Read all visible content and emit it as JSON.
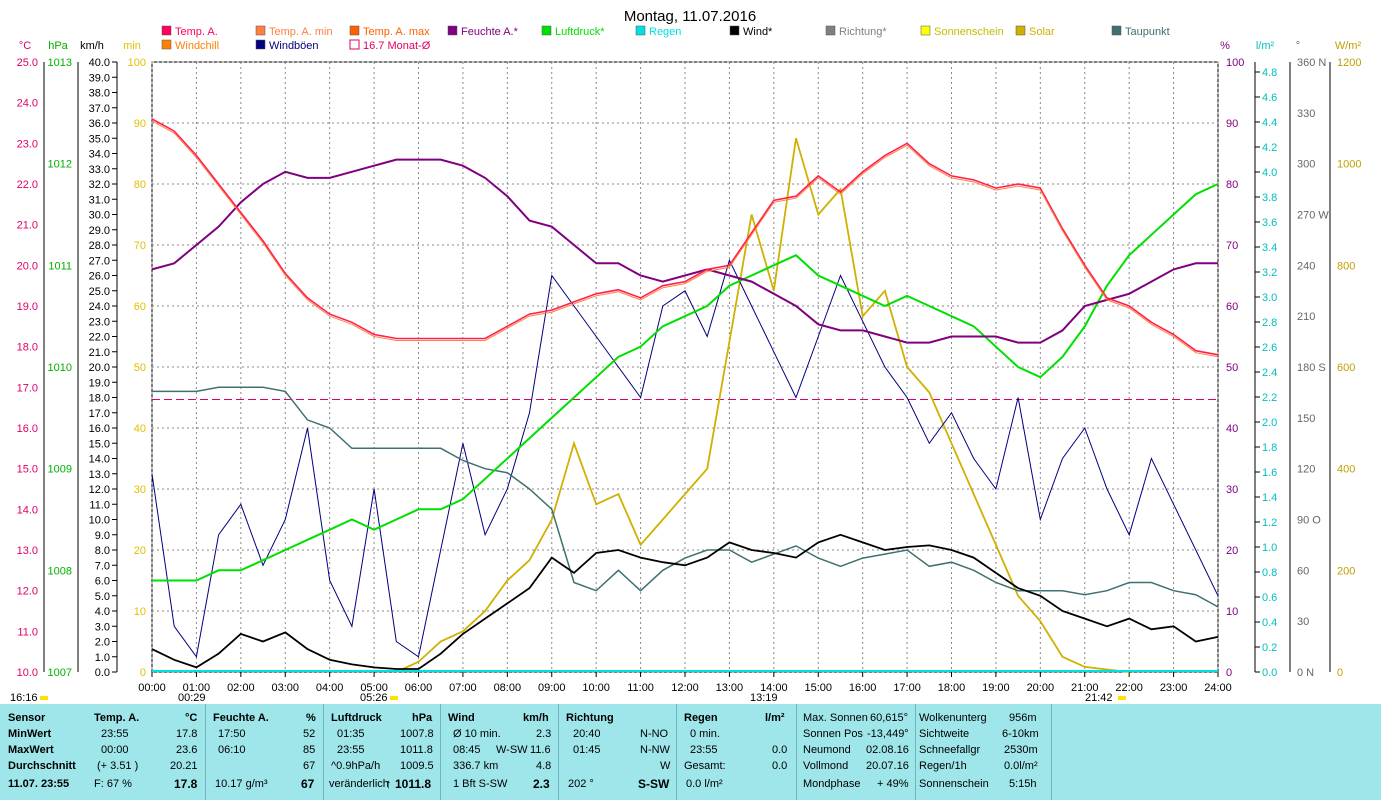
{
  "chart_data": {
    "type": "line",
    "title": "Montag, 11.07.2016",
    "x_ticks": [
      "00:00",
      "01:00",
      "02:00",
      "03:00",
      "04:00",
      "05:00",
      "06:00",
      "07:00",
      "08:00",
      "09:00",
      "10:00",
      "11:00",
      "12:00",
      "13:00",
      "14:00",
      "15:00",
      "16:00",
      "17:00",
      "18:00",
      "19:00",
      "20:00",
      "21:00",
      "22:00",
      "23:00",
      "24:00"
    ],
    "axis_units": {
      "temp": "°C",
      "press": "hPa",
      "wind": "km/h",
      "sunmin": "min",
      "hum": "%",
      "rain": "l/m²",
      "dir": "°",
      "solar": "W/m²"
    },
    "temp_ticks": [
      "25.0",
      "24.0",
      "23.0",
      "22.0",
      "21.0",
      "20.0",
      "19.0",
      "18.0",
      "17.0",
      "16.0",
      "15.0",
      "14.0",
      "13.0",
      "12.0",
      "11.0",
      "10.0"
    ],
    "press_ticks": [
      "1013",
      "1012",
      "1011",
      "1010",
      "1009",
      "1008",
      "1007"
    ],
    "wind_ticks": [
      "40.0",
      "39.0",
      "38.0",
      "37.0",
      "36.0",
      "35.0",
      "34.0",
      "33.0",
      "32.0",
      "31.0",
      "30.0",
      "29.0",
      "28.0",
      "27.0",
      "26.0",
      "25.0",
      "24.0",
      "23.0",
      "22.0",
      "21.0",
      "20.0",
      "19.0",
      "18.0",
      "17.0",
      "16.0",
      "15.0",
      "14.0",
      "13.0",
      "12.0",
      "11.0",
      "10.0",
      "9.0",
      "8.0",
      "7.0",
      "6.0",
      "5.0",
      "4.0",
      "3.0",
      "2.0",
      "1.0",
      "0.0"
    ],
    "sunmin_ticks": [
      "100",
      "90",
      "80",
      "70",
      "60",
      "50",
      "40",
      "30",
      "20",
      "10",
      "0"
    ],
    "hum_ticks": [
      "100",
      "90",
      "80",
      "70",
      "60",
      "50",
      "40",
      "30",
      "20",
      "10",
      "0"
    ],
    "rain_ticks": [
      "4.8",
      "4.6",
      "4.4",
      "4.2",
      "4.0",
      "3.8",
      "3.6",
      "3.4",
      "3.2",
      "3.0",
      "2.8",
      "2.6",
      "2.4",
      "2.2",
      "2.0",
      "1.8",
      "1.6",
      "1.4",
      "1.2",
      "1.0",
      "0.8",
      "0.6",
      "0.4",
      "0.2",
      "0.0"
    ],
    "dir_ticks": [
      "360 N",
      "330",
      "300",
      "270 W",
      "240",
      "210",
      "180 S",
      "150",
      "120",
      "90 O",
      "60",
      "30",
      "0 N"
    ],
    "solar_ticks": [
      "1200",
      "1000",
      "800",
      "600",
      "400",
      "200",
      "0"
    ],
    "legend": [
      {
        "label": "Temp. A.",
        "color": "#ff0060"
      },
      {
        "label": "Temp. A. min",
        "color": "#ff8040"
      },
      {
        "label": "Temp. A. max",
        "color": "#ff6000"
      },
      {
        "label": "Feuchte A.*",
        "color": "#800080"
      },
      {
        "label": "Luftdruck*",
        "color": "#00e000"
      },
      {
        "label": "Regen",
        "color": "#00e0e0"
      },
      {
        "label": "Wind*",
        "color": "#000000"
      },
      {
        "label": "Richtung*",
        "color": "#808080"
      },
      {
        "label": "Sonnenschein",
        "color": "#ffff00"
      },
      {
        "label": "Solar",
        "color": "#d0b000"
      },
      {
        "label": "Taupunkt",
        "color": "#407070"
      },
      {
        "label": "Windchill",
        "color": "#ff8000"
      },
      {
        "label": "Windböen",
        "color": "#000080"
      },
      {
        "label": "16.7 Monat-Ø",
        "color": "#e00060"
      }
    ],
    "time_markers": [
      "16:16",
      "00:29",
      "05:26",
      "13:19",
      "21:42"
    ],
    "series": [
      {
        "name": "Temp. A.",
        "unit": "°C",
        "x_hours": [
          0,
          0.5,
          1,
          1.5,
          2,
          2.5,
          3,
          3.5,
          4,
          4.5,
          5,
          5.5,
          6,
          6.5,
          7,
          7.5,
          8,
          8.5,
          9,
          9.5,
          10,
          10.5,
          11,
          11.5,
          12,
          12.5,
          13,
          13.5,
          14,
          14.5,
          15,
          15.5,
          16,
          16.5,
          17,
          17.5,
          18,
          18.5,
          19,
          19.5,
          20,
          20.5,
          21,
          21.5,
          22,
          22.5,
          23,
          23.5,
          24
        ],
        "values": [
          23.6,
          23.3,
          22.7,
          22.0,
          21.3,
          20.6,
          19.8,
          19.2,
          18.8,
          18.6,
          18.3,
          18.2,
          18.2,
          18.2,
          18.2,
          18.2,
          18.5,
          18.8,
          18.9,
          19.1,
          19.3,
          19.4,
          19.2,
          19.5,
          19.6,
          19.9,
          20.0,
          20.8,
          21.6,
          21.7,
          22.2,
          21.8,
          22.3,
          22.7,
          23.0,
          22.5,
          22.2,
          22.1,
          21.9,
          22.0,
          21.9,
          20.9,
          20.0,
          19.2,
          19.0,
          18.6,
          18.3,
          17.9,
          17.8
        ]
      },
      {
        "name": "Feuchte A.",
        "unit": "%",
        "x_hours": [
          0,
          0.5,
          1,
          1.5,
          2,
          2.5,
          3,
          3.5,
          4,
          4.5,
          5,
          5.5,
          6,
          6.5,
          7,
          7.5,
          8,
          8.5,
          9,
          9.5,
          10,
          10.5,
          11,
          11.5,
          12,
          12.5,
          13,
          13.5,
          14,
          14.5,
          15,
          15.5,
          16,
          16.5,
          17,
          17.5,
          18,
          18.5,
          19,
          19.5,
          20,
          20.5,
          21,
          21.5,
          22,
          22.5,
          23,
          23.5,
          24
        ],
        "values": [
          66,
          67,
          70,
          73,
          77,
          80,
          82,
          81,
          81,
          82,
          83,
          84,
          84,
          84,
          83,
          81,
          78,
          74,
          73,
          70,
          67,
          67,
          65,
          64,
          65,
          66,
          65,
          64,
          62,
          60,
          57,
          56,
          56,
          55,
          54,
          54,
          55,
          55,
          55,
          54,
          54,
          56,
          60,
          61,
          62,
          64,
          66,
          67,
          67
        ]
      },
      {
        "name": "Luftdruck",
        "unit": "hPa",
        "x_hours": [
          0,
          0.5,
          1,
          1.5,
          2,
          2.5,
          3,
          3.5,
          4,
          4.5,
          5,
          5.5,
          6,
          6.5,
          7,
          7.5,
          8,
          8.5,
          9,
          9.5,
          10,
          10.5,
          11,
          11.5,
          12,
          12.5,
          13,
          13.5,
          14,
          14.5,
          15,
          15.5,
          16,
          16.5,
          17,
          17.5,
          18,
          18.5,
          19,
          19.5,
          20,
          20.5,
          21,
          21.5,
          22,
          22.5,
          23,
          23.5,
          24
        ],
        "values": [
          1007.9,
          1007.9,
          1007.9,
          1008.0,
          1008.0,
          1008.1,
          1008.2,
          1008.3,
          1008.4,
          1008.5,
          1008.4,
          1008.5,
          1008.6,
          1008.6,
          1008.7,
          1008.9,
          1009.1,
          1009.3,
          1009.5,
          1009.7,
          1009.9,
          1010.1,
          1010.2,
          1010.4,
          1010.5,
          1010.6,
          1010.8,
          1010.9,
          1011.0,
          1011.1,
          1010.9,
          1010.8,
          1010.7,
          1010.6,
          1010.7,
          1010.6,
          1010.5,
          1010.4,
          1010.2,
          1010.0,
          1009.9,
          1010.1,
          1010.4,
          1010.8,
          1011.1,
          1011.3,
          1011.5,
          1011.7,
          1011.8
        ]
      },
      {
        "name": "Taupunkt",
        "unit": "°C",
        "x_hours": [
          0,
          0.5,
          1,
          1.5,
          2,
          2.5,
          3,
          3.5,
          4,
          4.5,
          5,
          5.5,
          6,
          6.5,
          7,
          7.5,
          8,
          8.5,
          9,
          9.5,
          10,
          10.5,
          11,
          11.5,
          12,
          12.5,
          13,
          13.5,
          14,
          14.5,
          15,
          15.5,
          16,
          16.5,
          17,
          17.5,
          18,
          18.5,
          19,
          19.5,
          20,
          20.5,
          21,
          21.5,
          22,
          22.5,
          23,
          23.5,
          24
        ],
        "values": [
          16.9,
          16.9,
          16.9,
          17.0,
          17.0,
          17.0,
          16.9,
          16.2,
          16.0,
          15.5,
          15.5,
          15.5,
          15.5,
          15.5,
          15.2,
          15.0,
          14.9,
          14.5,
          14.0,
          12.2,
          12.0,
          12.5,
          12.0,
          12.5,
          12.8,
          13.0,
          13.0,
          12.7,
          12.9,
          13.1,
          12.8,
          12.6,
          12.8,
          12.9,
          13.0,
          12.6,
          12.7,
          12.5,
          12.2,
          12.0,
          12.0,
          12.0,
          11.9,
          12.0,
          12.2,
          12.2,
          12.0,
          11.9,
          11.6
        ]
      },
      {
        "name": "Wind",
        "unit": "km/h",
        "x_hours": [
          0,
          0.5,
          1,
          1.5,
          2,
          2.5,
          3,
          3.5,
          4,
          4.5,
          5,
          5.5,
          6,
          6.5,
          7,
          7.5,
          8,
          8.5,
          9,
          9.5,
          10,
          10.5,
          11,
          11.5,
          12,
          12.5,
          13,
          13.5,
          14,
          14.5,
          15,
          15.5,
          16,
          16.5,
          17,
          17.5,
          18,
          18.5,
          19,
          19.5,
          20,
          20.5,
          21,
          21.5,
          22,
          22.5,
          23,
          23.5,
          24
        ],
        "values": [
          1.5,
          0.8,
          0.3,
          1.2,
          2.5,
          2.0,
          2.6,
          1.5,
          0.8,
          0.5,
          0.3,
          0.2,
          0.2,
          1.2,
          2.5,
          3.5,
          4.5,
          5.5,
          7.5,
          6.5,
          7.8,
          8.0,
          7.5,
          7.2,
          7.0,
          7.5,
          8.5,
          8.0,
          7.8,
          7.5,
          8.5,
          9.0,
          8.5,
          8.0,
          8.2,
          8.3,
          8.0,
          7.5,
          6.5,
          5.5,
          5.0,
          4.0,
          3.5,
          3.0,
          3.5,
          2.8,
          3.0,
          2.0,
          2.3
        ]
      },
      {
        "name": "Windböen",
        "unit": "km/h",
        "x_hours": [
          0,
          0.5,
          1,
          1.5,
          2,
          2.5,
          3,
          3.5,
          4,
          4.5,
          5,
          5.5,
          6,
          6.5,
          7,
          7.5,
          8,
          8.5,
          9,
          9.5,
          10,
          10.5,
          11,
          11.5,
          12,
          12.5,
          13,
          13.5,
          14,
          14.5,
          15,
          15.5,
          16,
          16.5,
          17,
          17.5,
          18,
          18.5,
          19,
          19.5,
          20,
          20.5,
          21,
          21.5,
          22,
          22.5,
          23,
          23.5,
          24
        ],
        "values": [
          13,
          3,
          1,
          9,
          11,
          7,
          10,
          16,
          6,
          3,
          12,
          2,
          1,
          8,
          15,
          9,
          12,
          17,
          26,
          24,
          22,
          20,
          18,
          24,
          25,
          22,
          27,
          24,
          21,
          18,
          22,
          26,
          23,
          20,
          18,
          15,
          17,
          14,
          12,
          18,
          10,
          14,
          16,
          12,
          9,
          14,
          11,
          8,
          5
        ]
      },
      {
        "name": "Solar",
        "unit": "W/m²",
        "x_hours": [
          5.5,
          6,
          6.5,
          7,
          7.5,
          8,
          8.5,
          9,
          9.5,
          10,
          10.5,
          11,
          11.5,
          12,
          12.5,
          13,
          13.5,
          14,
          14.5,
          15,
          15.5,
          16,
          16.5,
          17,
          17.5,
          18,
          18.5,
          19,
          19.5,
          20,
          20.5,
          21,
          21.5,
          22
        ],
        "values": [
          0,
          20,
          60,
          80,
          120,
          180,
          220,
          300,
          450,
          330,
          350,
          250,
          300,
          350,
          400,
          650,
          900,
          750,
          1050,
          900,
          950,
          700,
          750,
          600,
          550,
          450,
          350,
          250,
          150,
          100,
          30,
          10,
          5,
          0
        ]
      }
    ]
  },
  "bottom": {
    "row_labels": {
      "sensor": "Sensor",
      "min": "MinWert",
      "max": "MaxWert",
      "avg": "Durchschnitt",
      "date": "11.07. 23:55"
    },
    "temp": {
      "header": "Temp. A.",
      "unit": "°C",
      "min_time": "23:55",
      "min_val": "17.8",
      "max_time": "00:00",
      "max_val": "23.6",
      "avg_note": "(+ 3.51 )",
      "avg_val": "20.21",
      "cur_note": "F: 67 %",
      "cur_val": "17.8"
    },
    "hum": {
      "header": "Feuchte A.",
      "unit": "%",
      "min_time": "17:50",
      "min_val": "52",
      "max_time": "06:10",
      "max_val": "85",
      "avg_val": "67",
      "cur_note": "10.17 g/m³",
      "cur_val": "67"
    },
    "press": {
      "header": "Luftdruck",
      "unit": "hPa",
      "min_time": "01:35",
      "min_val": "1007.8",
      "max_time": "23:55",
      "max_val": "1011.8",
      "avg_note": "^0.9hPa/h",
      "avg_val": "1009.5",
      "cur_note": "veränderlich",
      "cur_val": "1011.8"
    },
    "wind": {
      "header": "Wind",
      "unit": "km/h",
      "min_note": "Ø 10 min.",
      "min_val": "2.3",
      "max_time": "08:45",
      "max_dir": "W-SW",
      "max_val": "11.6",
      "avg_note": "336.7 km",
      "avg_val": "4.8",
      "cur_note": "1 Bft S-SW",
      "cur_val": "2.3"
    },
    "dir": {
      "header": "Richtung",
      "min_time": "20:40",
      "min_val": "N-NO",
      "max_time": "01:45",
      "max_val": "N-NW",
      "avg_val": "W",
      "cur_note": "202 °",
      "cur_val": "S-SW"
    },
    "rain": {
      "header": "Regen",
      "unit": "l/m²",
      "min_note": "0 min.",
      "max_time": "23:55",
      "max_val": "0.0",
      "avg_note": "Gesamt:",
      "avg_val": "0.0",
      "cur_val": "0.0 l/m²"
    },
    "astro": [
      {
        "label": "Max. Sonnen",
        "value": "60,615°"
      },
      {
        "label": "Sonnen Pos",
        "value": "-13,449°"
      },
      {
        "label": "Neumond",
        "value": "02.08.16"
      },
      {
        "label": "Vollmond",
        "value": "20.07.16"
      },
      {
        "label": "Mondphase",
        "value": "+ 49%"
      }
    ],
    "misc": [
      {
        "label": "Wolkenunterg",
        "value": "956m"
      },
      {
        "label": "Sichtweite",
        "value": "6-10km"
      },
      {
        "label": "Schneefallgr",
        "value": "2530m"
      },
      {
        "label": "Regen/1h",
        "value": "0.0l/m²"
      },
      {
        "label": "Sonnenschein",
        "value": "5:15h"
      }
    ]
  }
}
